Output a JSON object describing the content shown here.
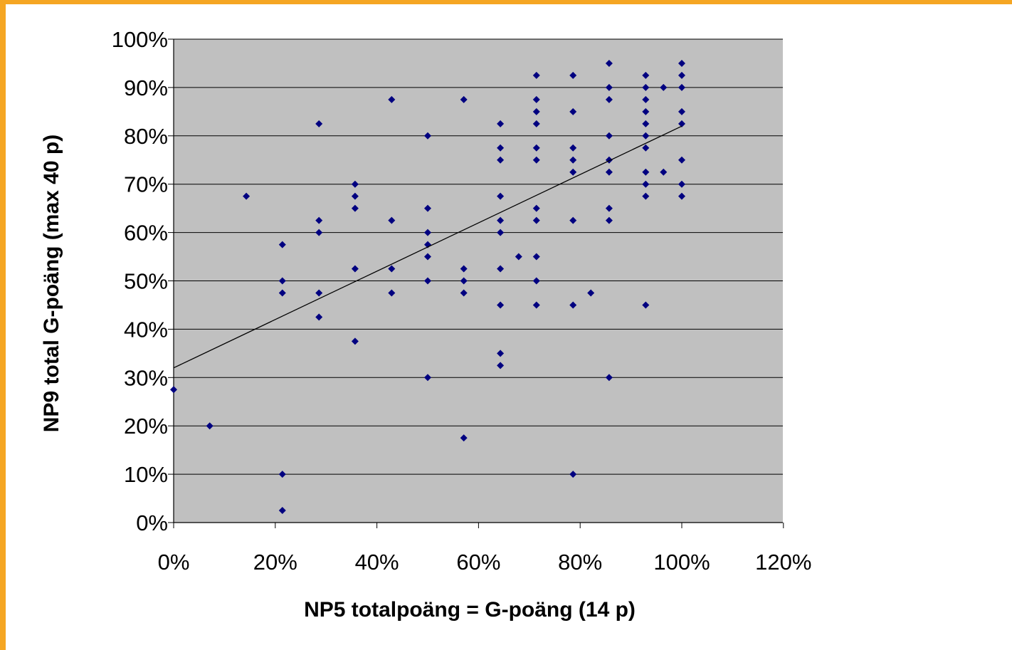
{
  "colors": {
    "frame": "#f5a623",
    "plot_background": "#c0c0c0",
    "gridline": "#000000",
    "marker": "#000080",
    "trendline": "#000000"
  },
  "chart_data": {
    "type": "scatter",
    "title": "",
    "xlabel": "NP5 totalpoäng = G-poäng (14 p)",
    "ylabel": "NP9 total G-poäng (max 40 p)",
    "xlim": [
      0,
      120
    ],
    "ylim": [
      0,
      100
    ],
    "x_ticks": [
      "0%",
      "20%",
      "40%",
      "60%",
      "80%",
      "100%",
      "120%"
    ],
    "y_ticks": [
      "0%",
      "10%",
      "20%",
      "30%",
      "40%",
      "50%",
      "60%",
      "70%",
      "80%",
      "90%",
      "100%"
    ],
    "grid": "horizontal major gridlines",
    "legend": "none",
    "marker": "diamond",
    "trendline": {
      "type": "linear",
      "x": [
        0,
        100
      ],
      "y": [
        32,
        82
      ]
    },
    "series": [
      {
        "points": [
          [
            0,
            27.5
          ],
          [
            7.1,
            20
          ],
          [
            14.3,
            67.5
          ],
          [
            21.4,
            57.5
          ],
          [
            21.4,
            50
          ],
          [
            21.4,
            47.5
          ],
          [
            21.4,
            10
          ],
          [
            21.4,
            2.5
          ],
          [
            28.6,
            82.5
          ],
          [
            28.6,
            62.5
          ],
          [
            28.6,
            60
          ],
          [
            28.6,
            47.5
          ],
          [
            28.6,
            42.5
          ],
          [
            35.7,
            70
          ],
          [
            35.7,
            67.5
          ],
          [
            35.7,
            65
          ],
          [
            35.7,
            52.5
          ],
          [
            35.7,
            37.5
          ],
          [
            42.9,
            87.5
          ],
          [
            42.9,
            62.5
          ],
          [
            42.9,
            52.5
          ],
          [
            42.9,
            47.5
          ],
          [
            50,
            80
          ],
          [
            50,
            65
          ],
          [
            50,
            60
          ],
          [
            50,
            57.5
          ],
          [
            50,
            55
          ],
          [
            50,
            50
          ],
          [
            50,
            30
          ],
          [
            57.1,
            87.5
          ],
          [
            57.1,
            52.5
          ],
          [
            57.1,
            50
          ],
          [
            57.1,
            47.5
          ],
          [
            57.1,
            17.5
          ],
          [
            64.3,
            82.5
          ],
          [
            64.3,
            77.5
          ],
          [
            64.3,
            75
          ],
          [
            64.3,
            67.5
          ],
          [
            64.3,
            62.5
          ],
          [
            64.3,
            60
          ],
          [
            64.3,
            52.5
          ],
          [
            64.3,
            45
          ],
          [
            64.3,
            35
          ],
          [
            64.3,
            32.5
          ],
          [
            67.9,
            55
          ],
          [
            71.4,
            92.5
          ],
          [
            71.4,
            87.5
          ],
          [
            71.4,
            85
          ],
          [
            71.4,
            82.5
          ],
          [
            71.4,
            77.5
          ],
          [
            71.4,
            75
          ],
          [
            71.4,
            65
          ],
          [
            71.4,
            62.5
          ],
          [
            71.4,
            55
          ],
          [
            71.4,
            50
          ],
          [
            71.4,
            45
          ],
          [
            78.6,
            92.5
          ],
          [
            78.6,
            85
          ],
          [
            78.6,
            77.5
          ],
          [
            78.6,
            75
          ],
          [
            78.6,
            72.5
          ],
          [
            78.6,
            62.5
          ],
          [
            78.6,
            45
          ],
          [
            78.6,
            10
          ],
          [
            82.1,
            47.5
          ],
          [
            85.7,
            95
          ],
          [
            85.7,
            90
          ],
          [
            85.7,
            87.5
          ],
          [
            85.7,
            80
          ],
          [
            85.7,
            75
          ],
          [
            85.7,
            72.5
          ],
          [
            85.7,
            65
          ],
          [
            85.7,
            62.5
          ],
          [
            85.7,
            30
          ],
          [
            92.9,
            92.5
          ],
          [
            92.9,
            90
          ],
          [
            92.9,
            87.5
          ],
          [
            92.9,
            85
          ],
          [
            92.9,
            82.5
          ],
          [
            92.9,
            80
          ],
          [
            92.9,
            77.5
          ],
          [
            92.9,
            72.5
          ],
          [
            92.9,
            70
          ],
          [
            92.9,
            67.5
          ],
          [
            92.9,
            45
          ],
          [
            96.4,
            90
          ],
          [
            96.4,
            72.5
          ],
          [
            100,
            95
          ],
          [
            100,
            92.5
          ],
          [
            100,
            90
          ],
          [
            100,
            85
          ],
          [
            100,
            82.5
          ],
          [
            100,
            75
          ],
          [
            100,
            70
          ],
          [
            100,
            67.5
          ]
        ]
      }
    ]
  }
}
